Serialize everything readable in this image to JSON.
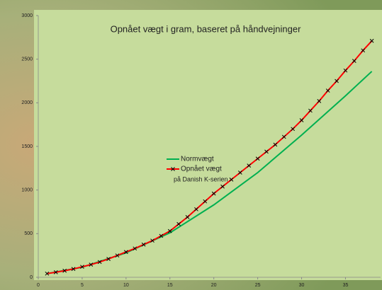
{
  "chart_data": {
    "type": "line",
    "title": "Opnået vægt i gram, baseret på håndvejninger",
    "annotation": "på Danish K-serien",
    "xlim": [
      0,
      39
    ],
    "xticks": [
      0,
      5,
      10,
      15,
      20,
      25,
      30,
      35
    ],
    "ylim": [
      0,
      3000
    ],
    "yticks": [
      0,
      500,
      1000,
      1500,
      2000,
      2500,
      3000
    ],
    "grid": false,
    "legend": "center",
    "series": [
      {
        "name": "Normvægt",
        "color": "#00b050",
        "marker": false,
        "x": [
          1,
          5,
          10,
          15,
          20,
          25,
          30,
          35,
          38
        ],
        "values": [
          42,
          115,
          280,
          510,
          830,
          1200,
          1630,
          2080,
          2360
        ]
      },
      {
        "name": "Opnået vægt",
        "color": "#ff0000",
        "marker": true,
        "x": [
          1,
          2,
          3,
          4,
          5,
          6,
          7,
          8,
          9,
          10,
          11,
          12,
          13,
          14,
          15,
          16,
          17,
          18,
          19,
          20,
          21,
          22,
          23,
          24,
          25,
          26,
          27,
          28,
          29,
          30,
          31,
          32,
          33,
          34,
          35,
          36,
          37,
          38
        ],
        "values": [
          42,
          58,
          75,
          95,
          120,
          145,
          175,
          210,
          250,
          290,
          330,
          375,
          420,
          475,
          530,
          610,
          690,
          780,
          870,
          960,
          1040,
          1120,
          1200,
          1280,
          1360,
          1440,
          1520,
          1610,
          1700,
          1800,
          1910,
          2020,
          2140,
          2250,
          2370,
          2480,
          2600,
          2710
        ]
      }
    ]
  }
}
